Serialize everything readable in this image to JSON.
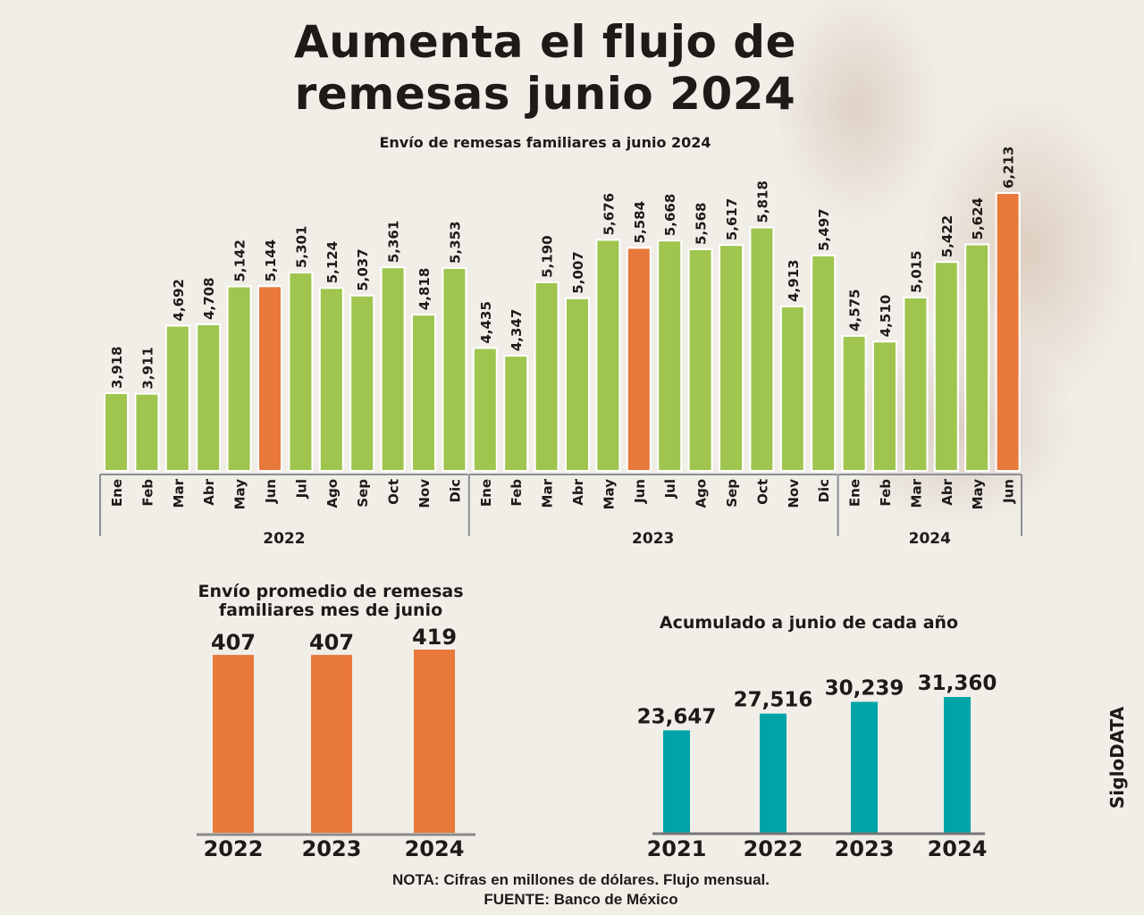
{
  "header": {
    "title_line1": "Aumenta el flujo de",
    "title_line2": "remesas junio 2024",
    "subtitle": "Envío de remesas familiares a junio 2024"
  },
  "colors": {
    "green": "#9fc54f",
    "orange": "#e8793a",
    "teal": "#00a3a6",
    "text": "#1e1a18",
    "background": "#f1eee8"
  },
  "chart_data": [
    {
      "type": "bar",
      "title": "Envío de remesas familiares a junio 2024",
      "xlabel": "",
      "ylabel": "",
      "categories": [
        "Ene",
        "Feb",
        "Mar",
        "Abr",
        "May",
        "Jun",
        "Jul",
        "Ago",
        "Sep",
        "Oct",
        "Nov",
        "Dic",
        "Ene",
        "Feb",
        "Mar",
        "Abr",
        "May",
        "Jun",
        "Jul",
        "Ago",
        "Sep",
        "Oct",
        "Nov",
        "Dic",
        "Ene",
        "Feb",
        "Mar",
        "Abr",
        "May",
        "Jun"
      ],
      "values": [
        3918,
        3911,
        4692,
        4708,
        5142,
        5144,
        5301,
        5124,
        5037,
        5361,
        4818,
        5353,
        4435,
        4347,
        5190,
        5007,
        5676,
        5584,
        5668,
        5568,
        5617,
        5818,
        4913,
        5497,
        4575,
        4510,
        5015,
        5422,
        5624,
        6213
      ],
      "labels": [
        "3,918",
        "3,911",
        "4,692",
        "4,708",
        "5,142",
        "5,144",
        "5,301",
        "5,124",
        "5,037",
        "5,361",
        "4,818",
        "5,353",
        "4,435",
        "4,347",
        "5,190",
        "5,007",
        "5,676",
        "5,584",
        "5,668",
        "5,568",
        "5,617",
        "5,818",
        "4,913",
        "5,497",
        "4,575",
        "4,510",
        "5,015",
        "5,422",
        "5,624",
        "6,213"
      ],
      "highlight": [
        "Jun"
      ],
      "groups": [
        {
          "label": "2022",
          "count": 12
        },
        {
          "label": "2023",
          "count": 12
        },
        {
          "label": "2024",
          "count": 6
        }
      ],
      "ylim": [
        2000,
        6500
      ],
      "grid": false,
      "legend": "none"
    },
    {
      "type": "bar",
      "title": "Envío promedio de remesas familiares mes de junio",
      "title_lines": [
        "Envío promedio de remesas",
        "familiares mes de junio"
      ],
      "categories": [
        "2022",
        "2023",
        "2024"
      ],
      "values": [
        407,
        407,
        419
      ],
      "labels": [
        "407",
        "407",
        "419"
      ],
      "ylim": [
        0,
        420
      ],
      "grid": false,
      "legend": "none"
    },
    {
      "type": "bar",
      "title": "Acumulado a junio de cada año",
      "categories": [
        "2021",
        "2022",
        "2023",
        "2024"
      ],
      "values": [
        23647,
        27516,
        30239,
        31360
      ],
      "labels": [
        "23,647",
        "27,516",
        "30,239",
        "31,360"
      ],
      "ylim": [
        0,
        40000
      ],
      "grid": false,
      "legend": "none"
    }
  ],
  "footer": {
    "note": "NOTA: Cifras en millones de dólares. Flujo mensual.",
    "source": "FUENTE: Banco de México",
    "brand": "SigloDATA"
  }
}
